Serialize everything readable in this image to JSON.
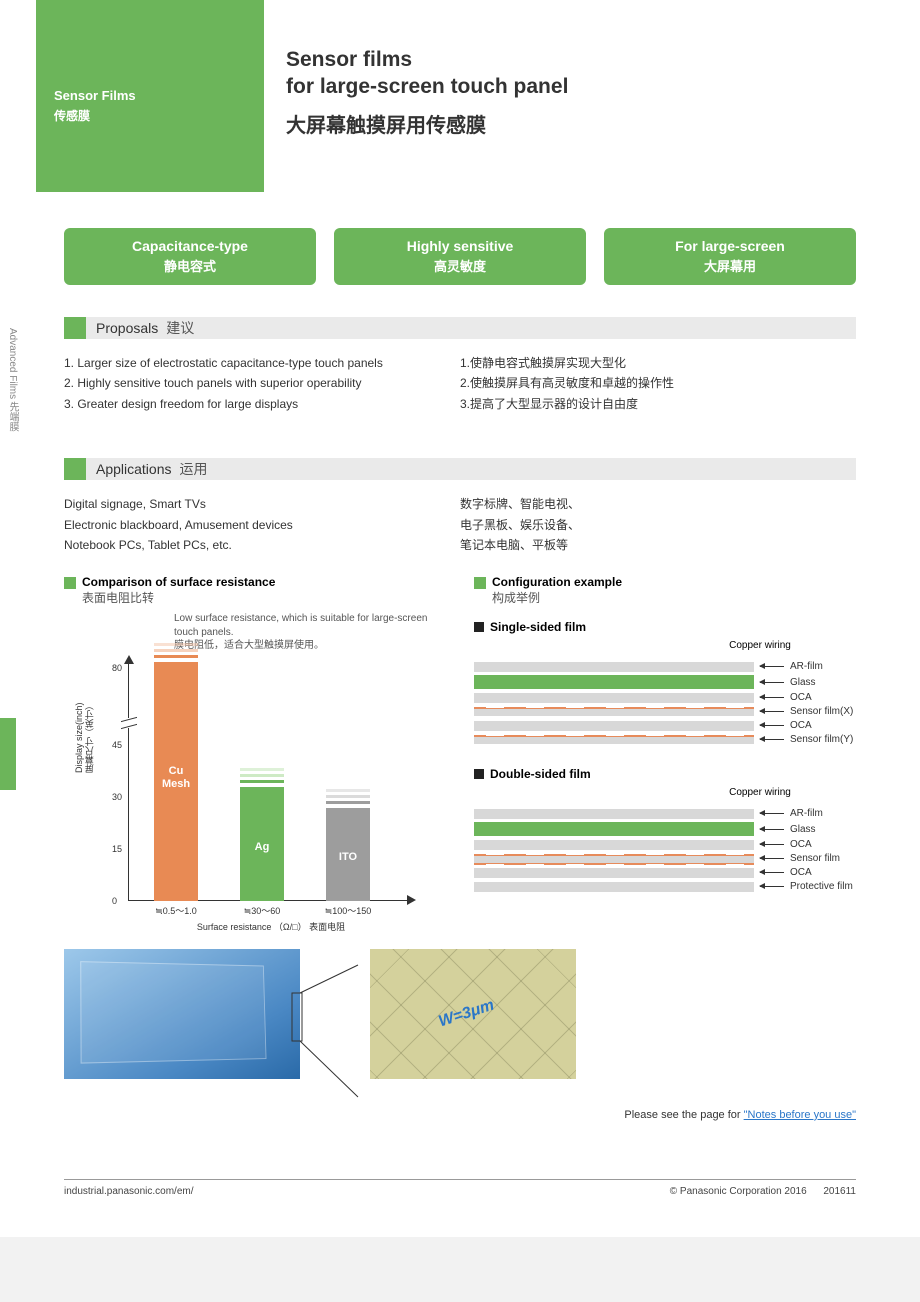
{
  "sideTab": "Advanced Films  先端膜",
  "heroCategory": {
    "en": "Sensor Films",
    "cn": "传感膜"
  },
  "heroTitle": {
    "line1": "Sensor films",
    "line2": "for large-screen touch panel",
    "cn": "大屏幕触摸屏用传感膜"
  },
  "pills": [
    {
      "en": "Capacitance-type",
      "cn": "静电容式"
    },
    {
      "en": "Highly sensitive",
      "cn": "高灵敏度"
    },
    {
      "en": "For large-screen",
      "cn": "大屏幕用"
    }
  ],
  "sections": {
    "proposals": {
      "en": "Proposals",
      "cn": "建议"
    },
    "applications": {
      "en": "Applications",
      "cn": "运用"
    }
  },
  "proposals": {
    "en": [
      "1. Larger size of electrostatic capacitance-type touch panels",
      "2. Highly sensitive touch panels with superior operability",
      "3. Greater design freedom for large displays"
    ],
    "cn": [
      "1.使静电容式触摸屏实现大型化",
      "2.使触摸屏具有高灵敏度和卓越的操作性",
      "3.提高了大型显示器的设计自由度"
    ]
  },
  "applications": {
    "en": [
      "Digital signage, Smart TVs",
      "Electronic blackboard, Amusement devices",
      "Notebook PCs, Tablet PCs, etc."
    ],
    "cn": [
      "数字标牌、智能电视、",
      "电子黑板、娱乐设备、",
      "笔记本电脑、平板等"
    ]
  },
  "chart": {
    "title": {
      "en": "Comparison of surface resistance",
      "cn": "表面电阻比转"
    },
    "note": {
      "en": "Low surface resistance, which is suitable for large-screen touch panels.",
      "cn": "膜电阻低，适合大型触摸屏使用。"
    },
    "yLabel": "Display size(inch)\n屏幕尺寸（英寸）",
    "xLabel": "Surface resistance （Ω/□） 表面电阻",
    "yTicks": [
      0,
      15,
      30,
      45,
      80
    ],
    "yMax": 85,
    "breakAt": 50,
    "bars": [
      {
        "label": "Cu\nMesh",
        "value": 84,
        "color": "#e88a54",
        "xcat": "≒0.5～1.0",
        "stripes": 3
      },
      {
        "label": "Ag",
        "value": 33,
        "color": "#6cb55a",
        "xcat": "≒30～60",
        "stripes": 3
      },
      {
        "label": "ITO",
        "value": 27,
        "color": "#9d9d9d",
        "xcat": "≒100～150",
        "stripes": 3
      }
    ],
    "stripeColors": [
      "#ffffff",
      "#bde3b2",
      "#e8f3e3"
    ]
  },
  "config": {
    "title": {
      "en": "Configuration example",
      "cn": "构成举例"
    },
    "copperLabel": "Copper wiring",
    "sets": [
      {
        "title": "Single-sided film",
        "layers": [
          {
            "kind": "plain",
            "label": "AR-film"
          },
          {
            "kind": "green",
            "label": "Glass"
          },
          {
            "kind": "plain",
            "label": "OCA"
          },
          {
            "kind": "sensor-top",
            "label": "Sensor film(X)"
          },
          {
            "kind": "plain",
            "label": "OCA"
          },
          {
            "kind": "sensor-top",
            "label": "Sensor film(Y)"
          }
        ]
      },
      {
        "title": "Double-sided film",
        "layers": [
          {
            "kind": "plain",
            "label": "AR-film"
          },
          {
            "kind": "green",
            "label": "Glass"
          },
          {
            "kind": "plain",
            "label": "OCA"
          },
          {
            "kind": "sensor-both",
            "label": "Sensor film"
          },
          {
            "kind": "plain",
            "label": "OCA"
          },
          {
            "kind": "plain",
            "label": "Protective film"
          }
        ]
      }
    ]
  },
  "measurement": "W=3μm",
  "footerNote": {
    "prefix": "Please see the page for ",
    "link": "\"Notes before you use\""
  },
  "footer": {
    "url": "industrial.panasonic.com/em/",
    "copyright": "© Panasonic Corporation 2016",
    "code": "201611"
  },
  "colors": {
    "brandGreen": "#6cb55a",
    "grey": "#d8d8d8",
    "copper": "#e78b5b"
  }
}
